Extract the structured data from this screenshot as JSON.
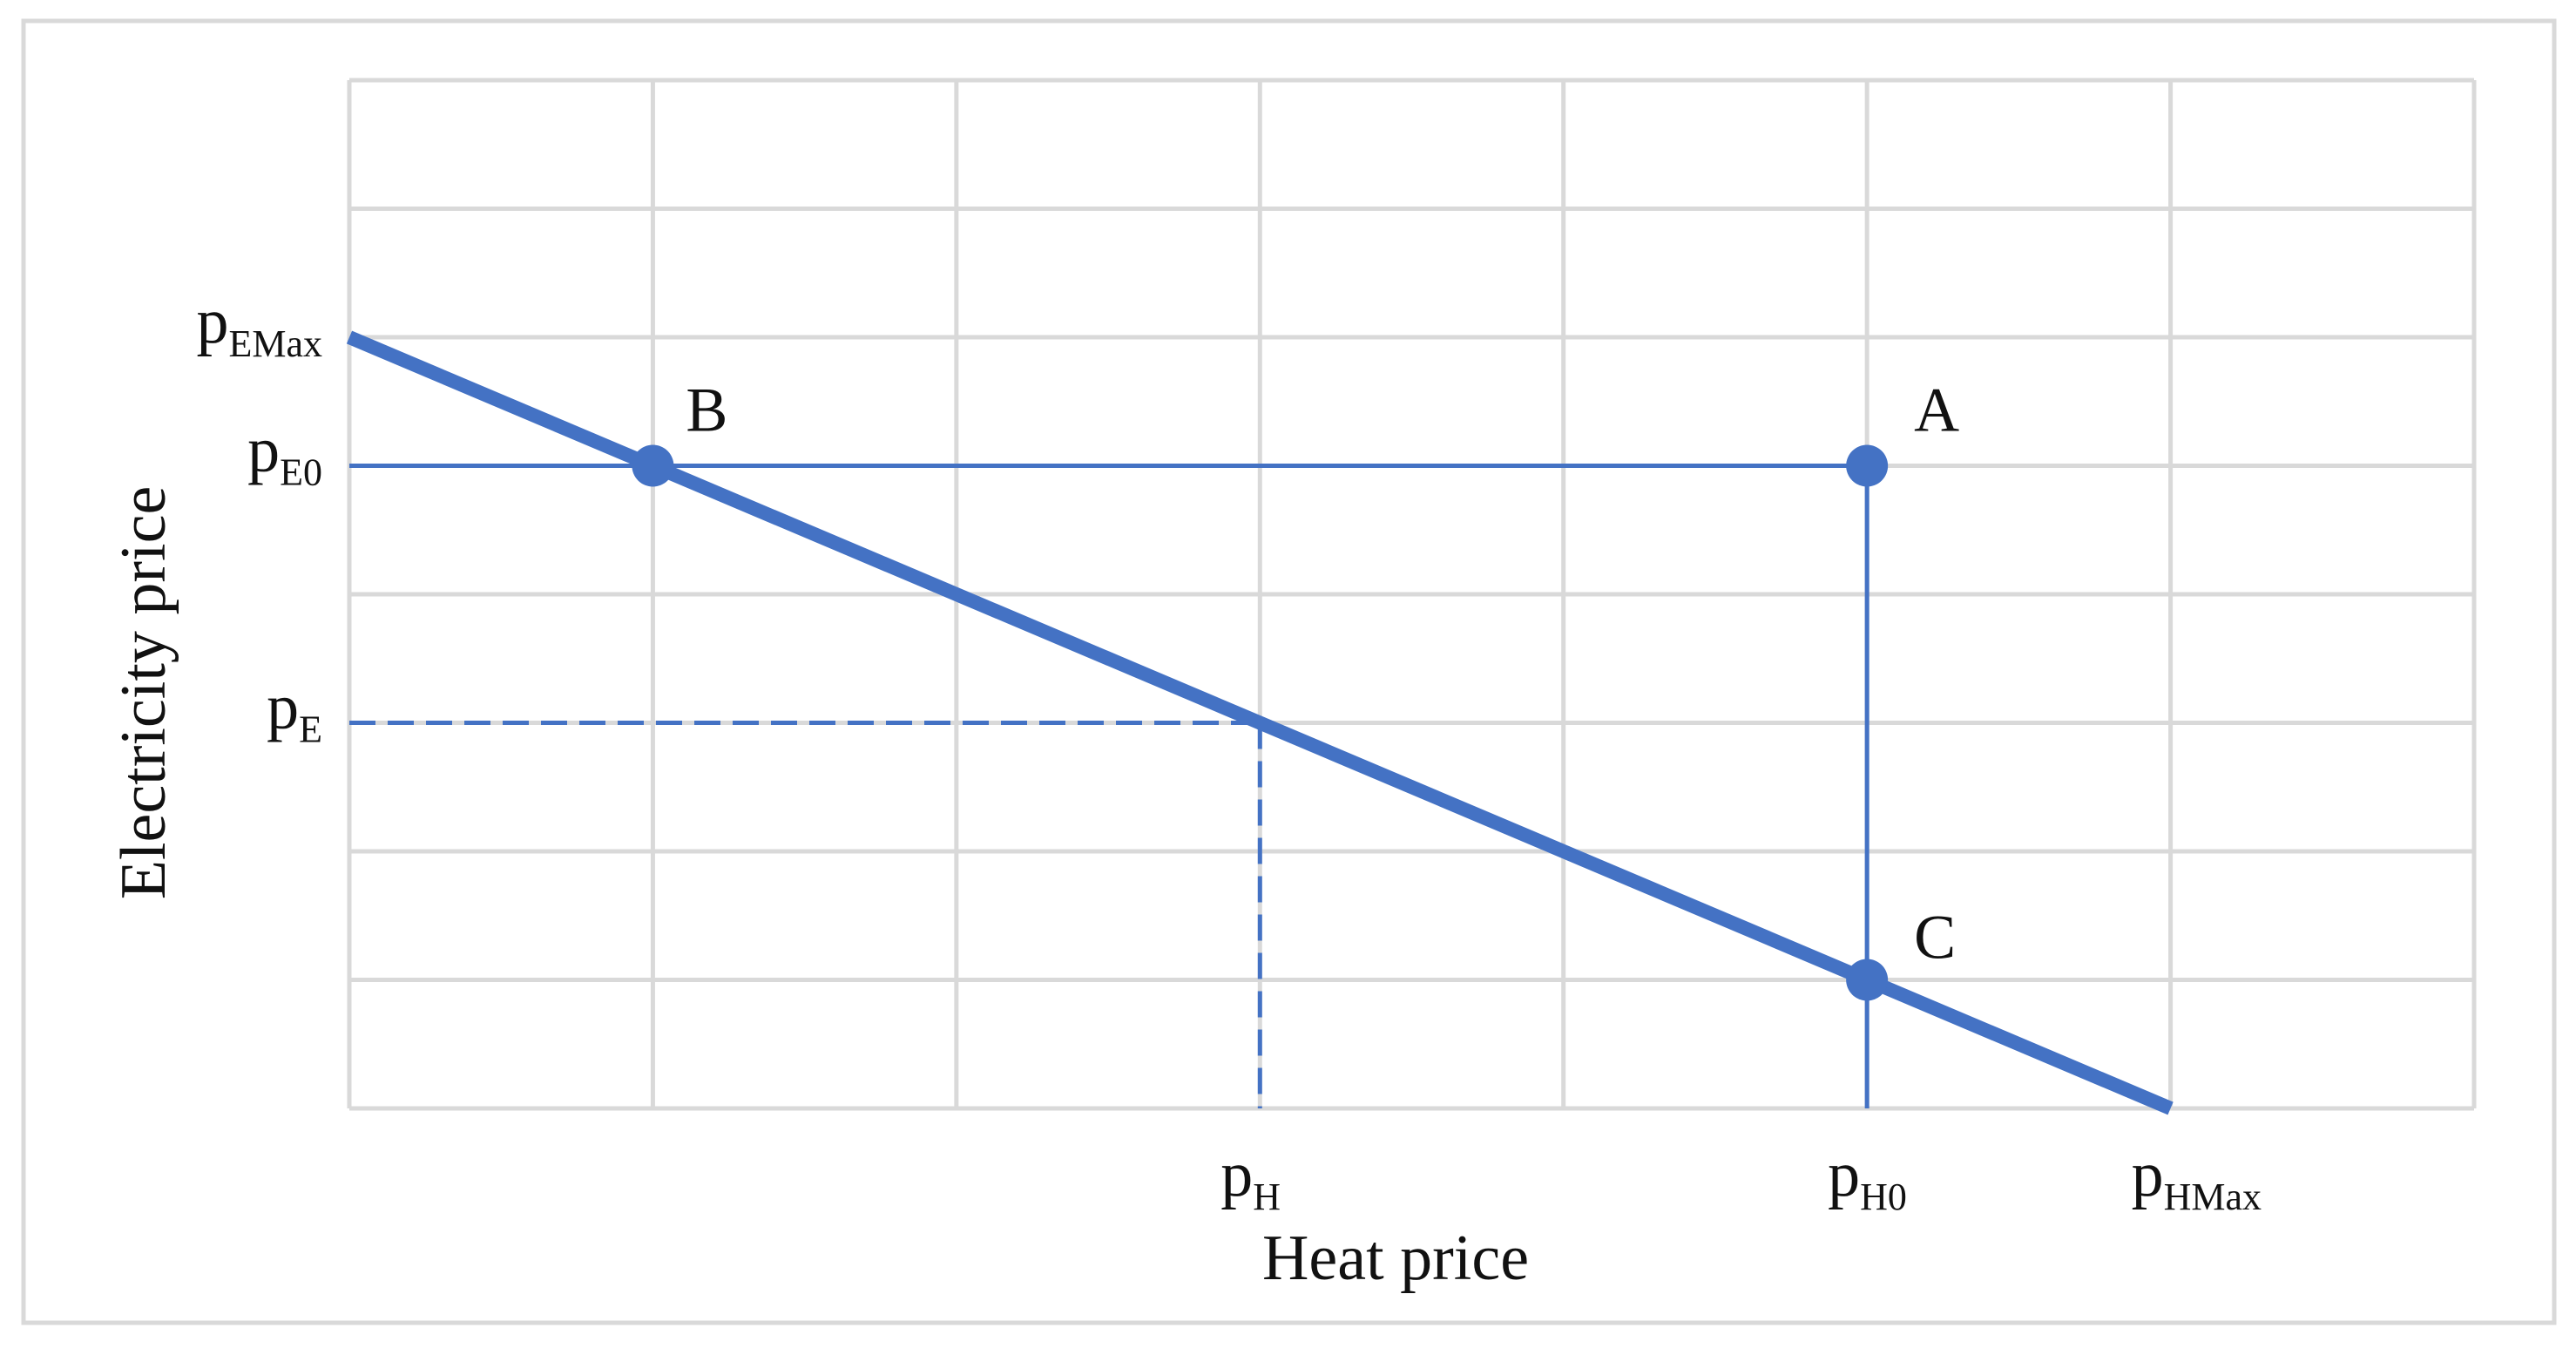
{
  "chart_data": {
    "type": "line",
    "xlabel": "Heat price",
    "ylabel": "Electricity price",
    "xlim": [
      0,
      7
    ],
    "ylim": [
      0,
      8
    ],
    "grid": true,
    "x_tick_labels": [
      {
        "main": "p",
        "sub": "H",
        "x": 3
      },
      {
        "main": "p",
        "sub": "H0",
        "x": 5
      },
      {
        "main": "p",
        "sub": "HMax",
        "x": 6
      }
    ],
    "y_tick_labels": [
      {
        "main": "p",
        "sub": "EMax",
        "y": 6
      },
      {
        "main": "p",
        "sub": "E0",
        "y": 5
      },
      {
        "main": "p",
        "sub": "E",
        "y": 3
      }
    ],
    "series": [
      {
        "kind": "trade-off-line",
        "points": [
          [
            0,
            6
          ],
          [
            6,
            0
          ]
        ]
      }
    ],
    "segments": [
      {
        "style": "solid",
        "from": [
          0,
          5
        ],
        "to": [
          5,
          5
        ]
      },
      {
        "style": "solid",
        "from": [
          5,
          5
        ],
        "to": [
          5,
          0
        ]
      },
      {
        "style": "dashed",
        "from": [
          0,
          3
        ],
        "to": [
          3,
          3
        ]
      },
      {
        "style": "dashed",
        "from": [
          3,
          3
        ],
        "to": [
          3,
          0
        ]
      }
    ],
    "points": [
      {
        "label": "A",
        "x": 5,
        "y": 5
      },
      {
        "label": "B",
        "x": 1,
        "y": 5
      },
      {
        "label": "C",
        "x": 5,
        "y": 1
      }
    ],
    "colors": {
      "line": "#4472C4",
      "grid": "#D9D9D9",
      "frame": "#D9D9D9"
    }
  }
}
